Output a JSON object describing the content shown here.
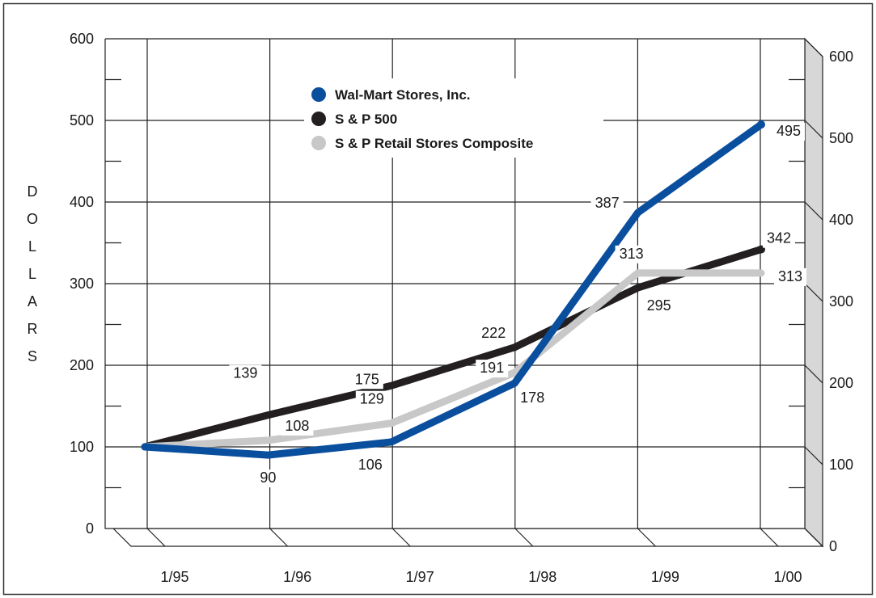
{
  "chart_data": {
    "type": "line",
    "categories": [
      "1/95",
      "1/96",
      "1/97",
      "1/98",
      "1/99",
      "1/00"
    ],
    "ylabel": "DOLLARS",
    "ylim": [
      0,
      600
    ],
    "y_ticks": [
      "0",
      "100",
      "200",
      "300",
      "400",
      "500",
      "600"
    ],
    "grid": true,
    "legend_position": "top-center",
    "series": [
      {
        "name": "Wal-Mart Stores, Inc.",
        "color": "#0a4f9e",
        "values": [
          100,
          90,
          106,
          178,
          387,
          495
        ],
        "labels": [
          "",
          "90",
          "106",
          "178",
          "387",
          "495"
        ]
      },
      {
        "name": "S & P 500",
        "color": "#231f20",
        "values": [
          100,
          139,
          175,
          222,
          295,
          342
        ],
        "labels": [
          "",
          "139",
          "175",
          "222",
          "295",
          "342"
        ]
      },
      {
        "name": "S & P Retail Stores Composite",
        "color": "#c8c8c8",
        "values": [
          100,
          108,
          129,
          191,
          313,
          313
        ],
        "labels": [
          "",
          "108",
          "129",
          "191",
          "313",
          "313"
        ]
      }
    ]
  }
}
